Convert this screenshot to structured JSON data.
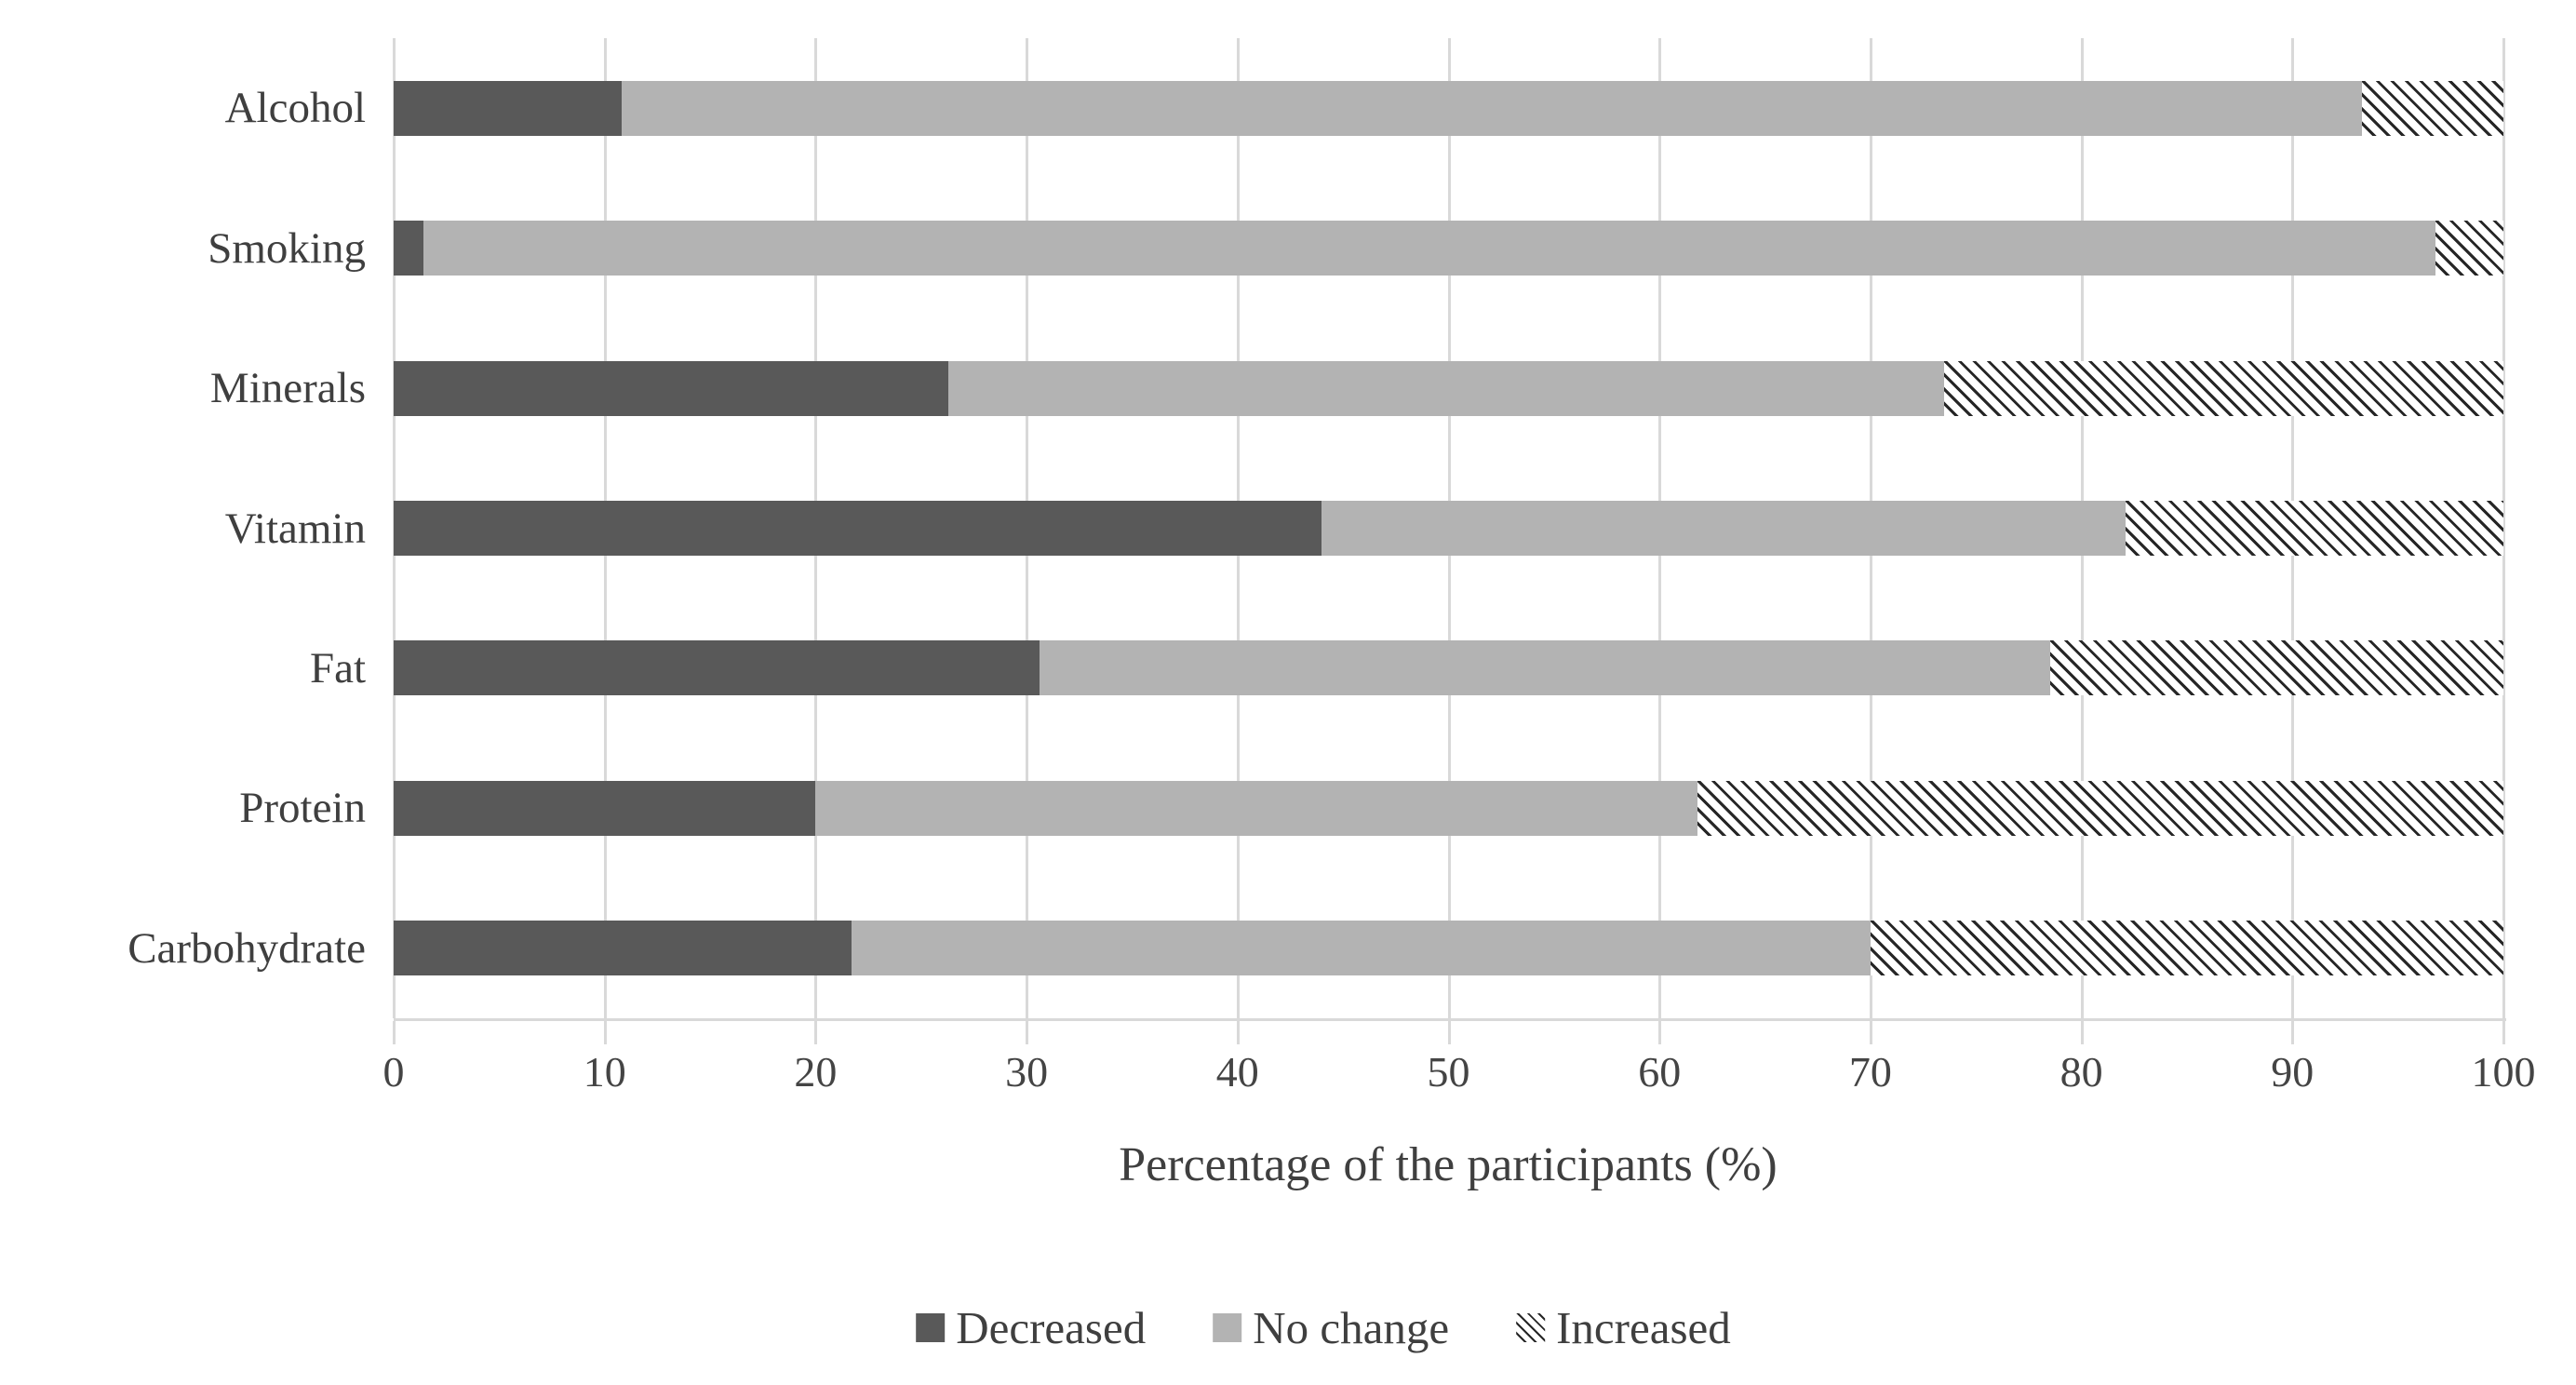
{
  "chart_data": {
    "type": "bar",
    "orientation": "horizontal",
    "stacked": true,
    "categories": [
      "Alcohol",
      "Smoking",
      "Minerals",
      "Vitamin",
      "Fat",
      "Protein",
      "Carbohydrate"
    ],
    "series": [
      {
        "name": "Decreased",
        "style": "solid-dark-gray",
        "color": "#595959",
        "values": [
          10.8,
          1.4,
          26.3,
          44.0,
          30.6,
          20.0,
          21.7
        ]
      },
      {
        "name": "No change",
        "style": "solid-light-gray",
        "color": "#b3b3b3",
        "values": [
          82.5,
          95.4,
          47.2,
          38.1,
          47.9,
          41.8,
          48.3
        ]
      },
      {
        "name": "Increased",
        "style": "diagonal-hatch",
        "color": "#262626",
        "values": [
          6.7,
          3.2,
          26.5,
          17.9,
          21.5,
          38.2,
          30.0
        ]
      }
    ],
    "xlabel": "Percentage of the participants (%)",
    "x_ticks": [
      0,
      10,
      20,
      30,
      40,
      50,
      60,
      70,
      80,
      90,
      100
    ],
    "xlim": [
      0,
      100
    ],
    "grid": "vertical-only",
    "gridline_color": "#d9d9d9",
    "legend_position": "bottom",
    "text_color": "#3f3f3f",
    "background_color": "#ffffff"
  }
}
